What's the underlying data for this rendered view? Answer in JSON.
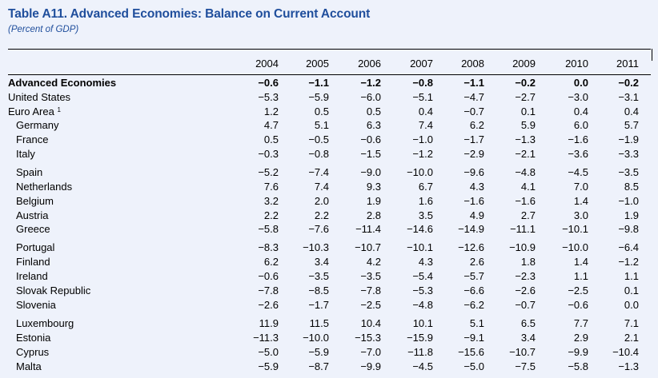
{
  "title": "Table A11. Advanced Economies: Balance on Current Account",
  "subtitle": "(Percent of GDP)",
  "years": [
    "2004",
    "2005",
    "2006",
    "2007",
    "2008",
    "2009",
    "2010",
    "2011"
  ],
  "rows": [
    {
      "label": "Advanced Economies",
      "bold": true,
      "indent": false,
      "values": [
        "−0.6",
        "−1.1",
        "−1.2",
        "−0.8",
        "−1.1",
        "−0.2",
        "0.0",
        "−0.2"
      ]
    },
    {
      "label": "United States",
      "values": [
        "−5.3",
        "−5.9",
        "−6.0",
        "−5.1",
        "−4.7",
        "−2.7",
        "−3.0",
        "−3.1"
      ]
    },
    {
      "label": "Euro Area",
      "sup": "1",
      "values": [
        "1.2",
        "0.5",
        "0.5",
        "0.4",
        "−0.7",
        "0.1",
        "0.4",
        "0.4"
      ]
    },
    {
      "label": "Germany",
      "indent": true,
      "values": [
        "4.7",
        "5.1",
        "6.3",
        "7.4",
        "6.2",
        "5.9",
        "6.0",
        "5.7"
      ]
    },
    {
      "label": "France",
      "indent": true,
      "values": [
        "0.5",
        "−0.5",
        "−0.6",
        "−1.0",
        "−1.7",
        "−1.3",
        "−1.6",
        "−1.9"
      ]
    },
    {
      "label": "Italy",
      "indent": true,
      "values": [
        "−0.3",
        "−0.8",
        "−1.5",
        "−1.2",
        "−2.9",
        "−2.1",
        "−3.6",
        "−3.3"
      ]
    },
    {
      "label": "Spain",
      "indent": true,
      "values": [
        "−5.2",
        "−7.4",
        "−9.0",
        "−10.0",
        "−9.6",
        "−4.8",
        "−4.5",
        "−3.5"
      ]
    },
    {
      "label": "Netherlands",
      "indent": true,
      "values": [
        "7.6",
        "7.4",
        "9.3",
        "6.7",
        "4.3",
        "4.1",
        "7.0",
        "8.5"
      ]
    },
    {
      "label": "Belgium",
      "indent": true,
      "values": [
        "3.2",
        "2.0",
        "1.9",
        "1.6",
        "−1.6",
        "−1.6",
        "1.4",
        "−1.0"
      ]
    },
    {
      "label": "Austria",
      "indent": true,
      "values": [
        "2.2",
        "2.2",
        "2.8",
        "3.5",
        "4.9",
        "2.7",
        "3.0",
        "1.9"
      ]
    },
    {
      "label": "Greece",
      "indent": true,
      "values": [
        "−5.8",
        "−7.6",
        "−11.4",
        "−14.6",
        "−14.9",
        "−11.1",
        "−10.1",
        "−9.8"
      ]
    },
    {
      "label": "Portugal",
      "indent": true,
      "values": [
        "−8.3",
        "−10.3",
        "−10.7",
        "−10.1",
        "−12.6",
        "−10.9",
        "−10.0",
        "−6.4"
      ]
    },
    {
      "label": "Finland",
      "indent": true,
      "values": [
        "6.2",
        "3.4",
        "4.2",
        "4.3",
        "2.6",
        "1.8",
        "1.4",
        "−1.2"
      ]
    },
    {
      "label": "Ireland",
      "indent": true,
      "values": [
        "−0.6",
        "−3.5",
        "−3.5",
        "−5.4",
        "−5.7",
        "−2.3",
        "1.1",
        "1.1"
      ]
    },
    {
      "label": "Slovak Republic",
      "indent": true,
      "values": [
        "−7.8",
        "−8.5",
        "−7.8",
        "−5.3",
        "−6.6",
        "−2.6",
        "−2.5",
        "0.1"
      ]
    },
    {
      "label": "Slovenia",
      "indent": true,
      "values": [
        "−2.6",
        "−1.7",
        "−2.5",
        "−4.8",
        "−6.2",
        "−0.7",
        "−0.6",
        "0.0"
      ]
    },
    {
      "label": "Luxembourg",
      "indent": true,
      "values": [
        "11.9",
        "11.5",
        "10.4",
        "10.1",
        "5.1",
        "6.5",
        "7.7",
        "7.1"
      ]
    },
    {
      "label": "Estonia",
      "indent": true,
      "values": [
        "−11.3",
        "−10.0",
        "−15.3",
        "−15.9",
        "−9.1",
        "3.4",
        "2.9",
        "2.1"
      ]
    },
    {
      "label": "Cyprus",
      "indent": true,
      "values": [
        "−5.0",
        "−5.9",
        "−7.0",
        "−11.8",
        "−15.6",
        "−10.7",
        "−9.9",
        "−10.4"
      ]
    },
    {
      "label": "Malta",
      "indent": true,
      "values": [
        "−5.9",
        "−8.7",
        "−9.9",
        "−4.5",
        "−5.0",
        "−7.5",
        "−5.8",
        "−1.3"
      ]
    }
  ]
}
